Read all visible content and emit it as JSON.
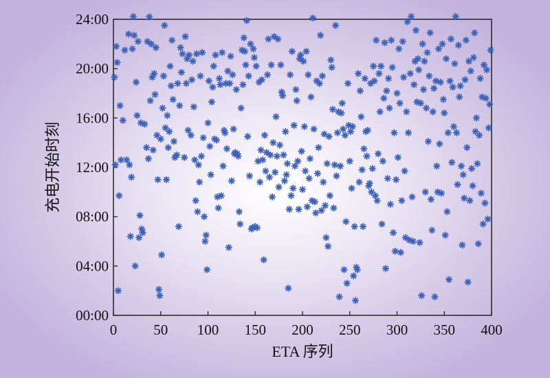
{
  "chart_data": {
    "type": "scatter",
    "xlabel": "ETA 序列",
    "ylabel": "充电开始时刻",
    "xlim": [
      0,
      400
    ],
    "ylim": [
      0,
      24
    ],
    "x_ticks": [
      "0",
      "50",
      "100",
      "150",
      "200",
      "250",
      "300",
      "350",
      "400"
    ],
    "y_ticks": [
      "00:00",
      "04:00",
      "08:00",
      "12:00",
      "16:00",
      "20:00",
      "24:00"
    ],
    "x_tick_values": [
      0,
      50,
      100,
      150,
      200,
      250,
      300,
      350,
      400
    ],
    "y_tick_values": [
      0,
      4,
      8,
      12,
      16,
      20,
      24
    ],
    "grid": false,
    "marker": "asterisk",
    "marker_color": "#3d62b8",
    "points": [
      [
        1,
        19.3
      ],
      [
        2,
        12.2
      ],
      [
        3,
        21.8
      ],
      [
        4,
        20.5
      ],
      [
        5,
        2.0
      ],
      [
        6,
        9.7
      ],
      [
        7,
        17.0
      ],
      [
        8,
        12.6
      ],
      [
        10,
        15.8
      ],
      [
        12,
        21.5
      ],
      [
        14,
        12.6
      ],
      [
        16,
        22.8
      ],
      [
        17,
        12.2
      ],
      [
        18,
        6.4
      ],
      [
        19,
        11.2
      ],
      [
        20,
        21.6
      ],
      [
        21,
        24.9
      ],
      [
        22,
        22.7
      ],
      [
        23,
        4.0
      ],
      [
        24,
        18.9
      ],
      [
        25,
        16.2
      ],
      [
        26,
        22.2
      ],
      [
        27,
        6.3
      ],
      [
        28,
        8.1
      ],
      [
        29,
        15.6
      ],
      [
        30,
        7.0
      ],
      [
        31,
        6.7
      ],
      [
        33,
        15.5
      ],
      [
        35,
        13.6
      ],
      [
        36,
        22.2
      ],
      [
        37,
        12.7
      ],
      [
        38,
        24.2
      ],
      [
        39,
        17.4
      ],
      [
        40,
        22.0
      ],
      [
        41,
        19.3
      ],
      [
        42,
        13.4
      ],
      [
        43,
        19.6
      ],
      [
        44,
        17.9
      ],
      [
        45,
        21.7
      ],
      [
        46,
        14.6
      ],
      [
        47,
        11.0
      ],
      [
        48,
        2.1
      ],
      [
        49,
        1.6
      ],
      [
        50,
        14.3
      ],
      [
        51,
        4.9
      ],
      [
        52,
        16.8
      ],
      [
        53,
        19.4
      ],
      [
        54,
        23.5
      ],
      [
        55,
        15.2
      ],
      [
        56,
        11.0
      ],
      [
        57,
        16.2
      ],
      [
        58,
        13.6
      ],
      [
        59,
        14.9
      ],
      [
        60,
        20.2
      ],
      [
        61,
        18.6
      ],
      [
        62,
        22.3
      ],
      [
        63,
        17.5
      ],
      [
        64,
        14.1
      ],
      [
        65,
        12.8
      ],
      [
        67,
        13.0
      ],
      [
        68,
        18.8
      ],
      [
        69,
        7.2
      ],
      [
        70,
        17.0
      ],
      [
        71,
        21.7
      ],
      [
        72,
        19.7
      ],
      [
        73,
        21.2
      ],
      [
        75,
        12.8
      ],
      [
        76,
        22.6
      ],
      [
        77,
        18.8
      ],
      [
        78,
        20.8
      ],
      [
        79,
        15.0
      ],
      [
        80,
        21.1
      ],
      [
        82,
        14.6
      ],
      [
        83,
        19.1
      ],
      [
        84,
        20.6
      ],
      [
        85,
        16.9
      ],
      [
        86,
        12.6
      ],
      [
        87,
        9.3
      ],
      [
        88,
        21.2
      ],
      [
        89,
        8.4
      ],
      [
        90,
        12.2
      ],
      [
        91,
        10.8
      ],
      [
        92,
        19.4
      ],
      [
        93,
        12.9
      ],
      [
        94,
        21.3
      ],
      [
        95,
        14.4
      ],
      [
        96,
        8.0
      ],
      [
        97,
        6.0
      ],
      [
        98,
        6.5
      ],
      [
        99,
        3.7
      ],
      [
        100,
        15.6
      ],
      [
        101,
        19.0
      ],
      [
        102,
        13.7
      ],
      [
        103,
        11.4
      ],
      [
        104,
        17.3
      ],
      [
        105,
        18.5
      ],
      [
        106,
        20.2
      ],
      [
        107,
        14.3
      ],
      [
        108,
        21.1
      ],
      [
        109,
        14.2
      ],
      [
        110,
        9.6
      ],
      [
        111,
        8.7
      ],
      [
        112,
        19.2
      ],
      [
        113,
        18.7
      ],
      [
        114,
        9.7
      ],
      [
        115,
        21.3
      ],
      [
        116,
        12.1
      ],
      [
        117,
        15.0
      ],
      [
        118,
        14.8
      ],
      [
        119,
        18.8
      ],
      [
        120,
        13.5
      ],
      [
        121,
        19.8
      ],
      [
        122,
        5.5
      ],
      [
        123,
        18.8
      ],
      [
        124,
        21.0
      ],
      [
        125,
        10.9
      ],
      [
        126,
        19.5
      ],
      [
        127,
        15.1
      ],
      [
        128,
        13.1
      ],
      [
        129,
        13.2
      ],
      [
        130,
        18.3
      ],
      [
        131,
        13.1
      ],
      [
        132,
        12.9
      ],
      [
        133,
        8.4
      ],
      [
        134,
        7.4
      ],
      [
        135,
        16.8
      ],
      [
        136,
        21.5
      ],
      [
        137,
        18.7
      ],
      [
        138,
        22.5
      ],
      [
        139,
        21.4
      ],
      [
        140,
        20.3
      ],
      [
        141,
        23.9
      ],
      [
        142,
        14.5
      ],
      [
        143,
        19.4
      ],
      [
        144,
        11.3
      ],
      [
        145,
        22.0
      ],
      [
        146,
        7.0
      ],
      [
        147,
        7.1
      ],
      [
        148,
        21.6
      ],
      [
        149,
        20.9
      ],
      [
        150,
        7.2
      ],
      [
        151,
        20.2
      ],
      [
        152,
        7.1
      ],
      [
        153,
        12.5
      ],
      [
        154,
        18.9
      ],
      [
        155,
        10.8
      ],
      [
        156,
        13.4
      ],
      [
        157,
        19.1
      ],
      [
        158,
        12.6
      ],
      [
        159,
        4.5
      ],
      [
        160,
        14.6
      ],
      [
        161,
        11.7
      ],
      [
        162,
        13.2
      ],
      [
        163,
        19.5
      ],
      [
        164,
        22.4
      ],
      [
        165,
        11.2
      ],
      [
        166,
        13.0
      ],
      [
        167,
        20.3
      ],
      [
        168,
        9.6
      ],
      [
        169,
        14.0
      ],
      [
        170,
        22.6
      ],
      [
        171,
        11.6
      ],
      [
        172,
        16.1
      ],
      [
        173,
        12.9
      ],
      [
        174,
        22.4
      ],
      [
        175,
        10.4
      ],
      [
        176,
        13.8
      ],
      [
        177,
        20.3
      ],
      [
        178,
        18.1
      ],
      [
        179,
        17.8
      ],
      [
        180,
        13.0
      ],
      [
        181,
        10.9
      ],
      [
        182,
        14.9
      ],
      [
        183,
        11.4
      ],
      [
        184,
        12.3
      ],
      [
        185,
        2.2
      ],
      [
        186,
        8.6
      ],
      [
        187,
        19.5
      ],
      [
        188,
        9.7
      ],
      [
        189,
        21.4
      ],
      [
        190,
        10.3
      ],
      [
        191,
        15.4
      ],
      [
        192,
        12.1
      ],
      [
        193,
        18.3
      ],
      [
        194,
        17.4
      ],
      [
        195,
        12.5
      ],
      [
        196,
        8.6
      ],
      [
        197,
        20.8
      ],
      [
        198,
        21.1
      ],
      [
        199,
        13.3
      ],
      [
        200,
        10.2
      ],
      [
        201,
        20.6
      ],
      [
        202,
        15.3
      ],
      [
        203,
        11.7
      ],
      [
        204,
        21.4
      ],
      [
        205,
        8.8
      ],
      [
        206,
        19.5
      ],
      [
        207,
        11.1
      ],
      [
        208,
        12.7
      ],
      [
        209,
        17.7
      ],
      [
        210,
        9.3
      ],
      [
        211,
        24.1
      ],
      [
        212,
        15.1
      ],
      [
        213,
        9.2
      ],
      [
        214,
        8.3
      ],
      [
        215,
        19.0
      ],
      [
        216,
        11.5
      ],
      [
        217,
        13.6
      ],
      [
        218,
        18.8
      ],
      [
        219,
        22.7
      ],
      [
        220,
        8.5
      ],
      [
        221,
        19.4
      ],
      [
        222,
        10.8
      ],
      [
        223,
        14.7
      ],
      [
        224,
        8.9
      ],
      [
        225,
        6.3
      ],
      [
        226,
        12.3
      ],
      [
        227,
        5.6
      ],
      [
        228,
        14.5
      ],
      [
        229,
        9.7
      ],
      [
        230,
        20.7
      ],
      [
        231,
        20.1
      ],
      [
        232,
        16.7
      ],
      [
        233,
        8.7
      ],
      [
        234,
        12.2
      ],
      [
        235,
        23.5
      ],
      [
        236,
        11.3
      ],
      [
        237,
        14.8
      ],
      [
        238,
        16.5
      ],
      [
        239,
        1.5
      ],
      [
        240,
        12.1
      ],
      [
        241,
        16.4
      ],
      [
        242,
        17.2
      ],
      [
        243,
        15.1
      ],
      [
        244,
        3.7
      ],
      [
        245,
        14.6
      ],
      [
        246,
        7.6
      ],
      [
        247,
        2.6
      ],
      [
        248,
        18.8
      ],
      [
        249,
        15.4
      ],
      [
        250,
        12.5
      ],
      [
        251,
        14.9
      ],
      [
        252,
        10.3
      ],
      [
        253,
        15.3
      ],
      [
        254,
        3.2
      ],
      [
        255,
        7.2
      ],
      [
        256,
        1.2
      ],
      [
        257,
        3.9
      ],
      [
        258,
        3.7
      ],
      [
        259,
        19.6
      ],
      [
        260,
        10.8
      ],
      [
        261,
        18.2
      ],
      [
        262,
        16.1
      ],
      [
        263,
        11.8
      ],
      [
        264,
        7.2
      ],
      [
        265,
        13.5
      ],
      [
        266,
        19.2
      ],
      [
        267,
        14.9
      ],
      [
        268,
        12.9
      ],
      [
        269,
        15.0
      ],
      [
        270,
        10.5
      ],
      [
        271,
        10.7
      ],
      [
        272,
        18.8
      ],
      [
        273,
        10.0
      ],
      [
        274,
        11.9
      ],
      [
        275,
        20.2
      ],
      [
        276,
        19.0
      ],
      [
        277,
        9.7
      ],
      [
        278,
        22.3
      ],
      [
        279,
        9.3
      ],
      [
        280,
        13.1
      ],
      [
        281,
        19.6
      ],
      [
        282,
        16.5
      ],
      [
        283,
        20.2
      ],
      [
        284,
        7.4
      ],
      [
        285,
        12.5
      ],
      [
        286,
        17.6
      ],
      [
        287,
        22.1
      ],
      [
        288,
        3.8
      ],
      [
        289,
        18.2
      ],
      [
        290,
        11.1
      ],
      [
        291,
        19.2
      ],
      [
        292,
        16.8
      ],
      [
        293,
        9.0
      ],
      [
        294,
        22.3
      ],
      [
        295,
        20.1
      ],
      [
        296,
        6.7
      ],
      [
        297,
        14.8
      ],
      [
        298,
        5.2
      ],
      [
        299,
        11.0
      ],
      [
        300,
        18.0
      ],
      [
        301,
        12.8
      ],
      [
        302,
        21.6
      ],
      [
        303,
        17.2
      ],
      [
        304,
        5.1
      ],
      [
        305,
        9.3
      ],
      [
        306,
        22.2
      ],
      [
        307,
        19.3
      ],
      [
        308,
        11.7
      ],
      [
        309,
        6.3
      ],
      [
        310,
        16.5
      ],
      [
        311,
        23.8
      ],
      [
        312,
        14.8
      ],
      [
        313,
        6.1
      ],
      [
        314,
        19.6
      ],
      [
        315,
        25.0
      ],
      [
        316,
        9.6
      ],
      [
        317,
        6.0
      ],
      [
        318,
        18.7
      ],
      [
        319,
        20.6
      ],
      [
        320,
        23.1
      ],
      [
        321,
        17.3
      ],
      [
        322,
        20.8
      ],
      [
        323,
        19.9
      ],
      [
        324,
        5.9
      ],
      [
        325,
        17.2
      ],
      [
        326,
        1.6
      ],
      [
        327,
        22.0
      ],
      [
        328,
        18.3
      ],
      [
        329,
        20.6
      ],
      [
        330,
        10.0
      ],
      [
        331,
        16.8
      ],
      [
        332,
        21.3
      ],
      [
        333,
        14.1
      ],
      [
        334,
        19.4
      ],
      [
        335,
        22.9
      ],
      [
        336,
        9.4
      ],
      [
        337,
        6.9
      ],
      [
        338,
        16.5
      ],
      [
        339,
        18.4
      ],
      [
        340,
        1.5
      ],
      [
        341,
        19.0
      ],
      [
        342,
        12.1
      ],
      [
        343,
        10.0
      ],
      [
        344,
        21.6
      ],
      [
        345,
        13.9
      ],
      [
        346,
        18.9
      ],
      [
        347,
        9.9
      ],
      [
        348,
        22.0
      ],
      [
        349,
        17.5
      ],
      [
        350,
        16.4
      ],
      [
        351,
        6.5
      ],
      [
        352,
        20.8
      ],
      [
        353,
        8.4
      ],
      [
        354,
        14.8
      ],
      [
        355,
        2.9
      ],
      [
        356,
        19.0
      ],
      [
        357,
        22.4
      ],
      [
        358,
        12.4
      ],
      [
        359,
        18.5
      ],
      [
        360,
        15.3
      ],
      [
        361,
        20.4
      ],
      [
        362,
        24.6
      ],
      [
        363,
        14.8
      ],
      [
        364,
        10.6
      ],
      [
        365,
        21.9
      ],
      [
        366,
        17.7
      ],
      [
        367,
        18.6
      ],
      [
        368,
        12.1
      ],
      [
        369,
        5.7
      ],
      [
        370,
        11.4
      ],
      [
        371,
        9.5
      ],
      [
        372,
        19.1
      ],
      [
        373,
        22.3
      ],
      [
        374,
        13.6
      ],
      [
        375,
        2.7
      ],
      [
        376,
        20.6
      ],
      [
        377,
        9.3
      ],
      [
        378,
        19.8
      ],
      [
        379,
        11.9
      ],
      [
        380,
        10.5
      ],
      [
        381,
        20.9
      ],
      [
        382,
        22.9
      ],
      [
        383,
        14.9
      ],
      [
        384,
        16.0
      ],
      [
        385,
        12.3
      ],
      [
        386,
        5.8
      ],
      [
        387,
        14.6
      ],
      [
        388,
        19.2
      ],
      [
        389,
        9.9
      ],
      [
        390,
        17.7
      ],
      [
        391,
        7.4
      ],
      [
        392,
        20.3
      ],
      [
        393,
        9.1
      ],
      [
        394,
        17.6
      ],
      [
        395,
        19.9
      ],
      [
        396,
        7.8
      ],
      [
        397,
        15.2
      ],
      [
        398,
        17.1
      ],
      [
        399,
        21.5
      ]
    ]
  }
}
